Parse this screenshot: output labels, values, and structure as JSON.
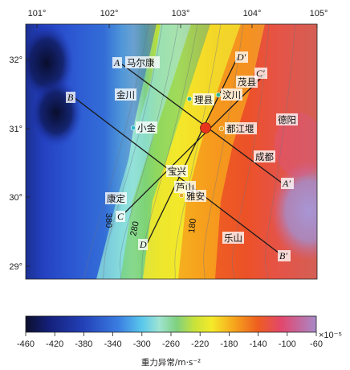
{
  "map": {
    "lon_labels": [
      "101°",
      "102°",
      "103°",
      "104°",
      "105°"
    ],
    "lat_labels": [
      "32°",
      "31°",
      "30°",
      "29°"
    ],
    "cities": [
      {
        "key": "maerkang",
        "name": "马尔康",
        "dot": false
      },
      {
        "key": "jinchuan",
        "name": "金川",
        "dot": false
      },
      {
        "key": "lixian",
        "name": "理县",
        "dot": true,
        "color": "#2bb58f"
      },
      {
        "key": "wenchuan",
        "name": "汶川",
        "dot": true,
        "color": "#2bb58f"
      },
      {
        "key": "maoxian",
        "name": "茂县",
        "dot": false
      },
      {
        "key": "dujiangyan",
        "name": "都江堰",
        "dot": true,
        "color": "#e3a72f"
      },
      {
        "key": "deyang",
        "name": "德阳",
        "dot": false
      },
      {
        "key": "xiaojin",
        "name": "小金",
        "dot": true,
        "color": "#2bb5c8"
      },
      {
        "key": "chengdu",
        "name": "成都",
        "dot": false
      },
      {
        "key": "baoxing",
        "name": "宝兴",
        "dot": false
      },
      {
        "key": "lushan",
        "name": "芦山",
        "dot": false
      },
      {
        "key": "yaan",
        "name": "雅安",
        "dot": true,
        "color": "#e3a72f"
      },
      {
        "key": "kangding",
        "name": "康定",
        "dot": false
      },
      {
        "key": "leshan",
        "name": "乐山",
        "dot": false
      }
    ],
    "profiles": [
      {
        "start": "A",
        "end": "A′"
      },
      {
        "start": "B",
        "end": "B′"
      },
      {
        "start": "C",
        "end": "C′"
      },
      {
        "start": "D",
        "end": "D′"
      }
    ],
    "contour_labels": [
      "380",
      "280",
      "180"
    ],
    "epicenter_color": "#e8341c"
  },
  "colorbar": {
    "ticks": [
      "-460",
      "-420",
      "-380",
      "-340",
      "-300",
      "-260",
      "-220",
      "-180",
      "-140",
      "-100",
      "-60"
    ],
    "unit": "×10⁻⁵",
    "title": "重力异常/m·s⁻²",
    "min": -460,
    "max": -60
  }
}
